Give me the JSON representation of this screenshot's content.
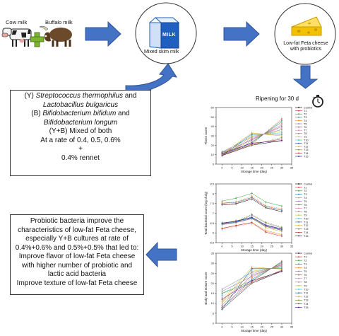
{
  "inputs": {
    "cow_milk": "Cow milk",
    "buffalo_milk": "Buffalo milk",
    "plus": "+"
  },
  "process": {
    "carton_text": "MILK",
    "mixed_skim_milk": "Mixed skim milk",
    "cheese_label": "Low-fat Feta cheese with probiotics",
    "ripening": "Ripening for 30 d"
  },
  "cultures_box": {
    "line1_prefix": "(Y) ",
    "line1_italic": "Streptococcus thermophilus",
    "line1_suffix": " and",
    "line2_italic": "Lactobacillus bulgaricus",
    "line3_prefix": "(B) ",
    "line3_italic": "Bifidobacterium bifidum",
    "line3_suffix": " and",
    "line4_italic": "Bifidobacterium longum",
    "line5": "(Y+B) Mixed of both",
    "line6": "At a rate of 0.4, 0.5, 0.6%",
    "line7": "+",
    "line8": "0.4% rennet"
  },
  "conclusion_box": {
    "lines": [
      "Probiotic bacteria improve the",
      "characteristics of low-fat Feta cheese,",
      "especially Y+B cultures at rate of",
      "0.4%+0.6% and 0.5%+0.5% that led to:",
      "Improve flavor of low-fat Feta cheese",
      "with higher number of probiotic and",
      "lactic acid bacteria",
      "Improve texture of low-fat Feta cheese"
    ]
  },
  "legend": [
    "Control",
    "T1",
    "T2",
    "T3",
    "T4",
    "T5",
    "T6",
    "T7",
    "T8",
    "T9",
    "T10",
    "T11",
    "T12",
    "T13",
    "T14",
    "T15"
  ],
  "colors": {
    "arrow": "#4472c4",
    "arrow_edge": "#2f5597",
    "carton": "#1f5fc0",
    "cheese": "#f2c200"
  },
  "chart_data": [
    {
      "type": "line",
      "ylabel": "Flavor score",
      "xlabel": "Storage time (day)",
      "x": [
        0,
        15,
        30
      ],
      "xticks": [
        0,
        5,
        10,
        15,
        20,
        25,
        30,
        35
      ],
      "yticks": [
        0,
        10,
        20,
        30,
        40,
        50,
        60
      ],
      "ylim": [
        0,
        60
      ],
      "xlim": [
        -3,
        35
      ],
      "series_range": {
        "start": [
          9,
          13
        ],
        "mid": [
          20,
          33
        ],
        "end": [
          25,
          48
        ]
      }
    },
    {
      "type": "line",
      "ylabel": "Total bacterial count (log cfu/g)",
      "xlabel": "Storage time (day)",
      "x": [
        0,
        7,
        15,
        22,
        30
      ],
      "xticks": [
        0,
        5,
        10,
        15,
        20,
        25,
        30,
        35
      ],
      "yticks": [
        5.5,
        6.0,
        6.5,
        7.0,
        7.5,
        8.0,
        8.5
      ],
      "ylim": [
        5.5,
        8.5
      ],
      "xlim": [
        -3,
        35
      ],
      "series_groups": {
        "upper": [
          [
            7.55,
            7.6,
            7.85,
            7.4,
            7.2
          ],
          [
            7.45,
            7.5,
            7.8,
            7.3,
            7.15
          ],
          [
            7.5,
            7.65,
            7.9,
            7.45,
            7.25
          ]
        ],
        "lower": [
          [
            6.5,
            6.6,
            6.8,
            6.4,
            6.2
          ],
          [
            6.4,
            6.5,
            6.7,
            6.3,
            6.1
          ],
          [
            6.3,
            6.45,
            6.6,
            6.2,
            6.0
          ],
          [
            6.45,
            6.55,
            6.9,
            6.5,
            6.25
          ],
          [
            6.35,
            6.5,
            6.65,
            6.15,
            5.95
          ]
        ]
      }
    },
    {
      "type": "line",
      "ylabel": "Body and texture score",
      "xlabel": "Storage time (day)",
      "x": [
        0,
        15,
        30
      ],
      "xticks": [
        0,
        5,
        10,
        15,
        20,
        25,
        30,
        35
      ],
      "yticks": [
        0,
        5,
        10,
        15,
        20,
        25,
        30,
        35
      ],
      "ylim": [
        0,
        35
      ],
      "xlim": [
        -3,
        35
      ],
      "series_range": {
        "start": [
          7,
          17
        ],
        "mid": [
          20,
          28
        ],
        "end": [
          26,
          31
        ]
      }
    }
  ]
}
